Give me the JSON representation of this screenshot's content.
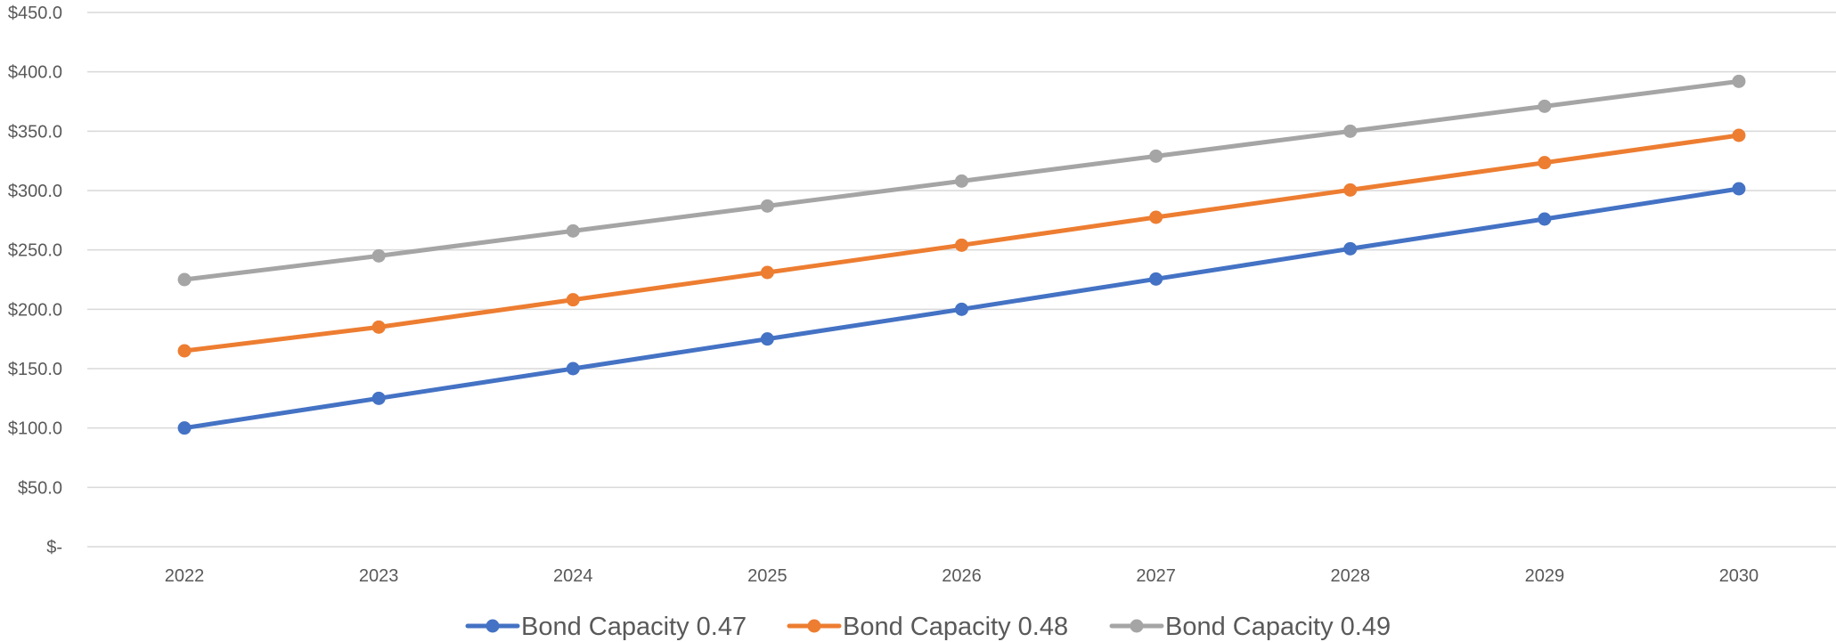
{
  "chart_data": {
    "type": "line",
    "x": [
      "2022",
      "2023",
      "2024",
      "2025",
      "2026",
      "2027",
      "2028",
      "2029",
      "2030"
    ],
    "series": [
      {
        "name": "Bond Capacity 0.47",
        "color": "#4472C4",
        "values": [
          100.0,
          125.0,
          150.0,
          175.0,
          200.0,
          225.5,
          251.0,
          276.0,
          301.5
        ]
      },
      {
        "name": "Bond Capacity 0.48",
        "color": "#ED7D31",
        "values": [
          165.0,
          185.0,
          208.0,
          231.0,
          254.0,
          277.5,
          300.5,
          323.5,
          346.5
        ]
      },
      {
        "name": "Bond Capacity 0.49",
        "color": "#A5A5A5",
        "values": [
          225.0,
          245.0,
          266.0,
          287.0,
          308.0,
          329.0,
          350.0,
          371.0,
          392.0
        ]
      }
    ],
    "yticks": [
      {
        "value": 0,
        "label": "$-"
      },
      {
        "value": 50,
        "label": "$50.0"
      },
      {
        "value": 100,
        "label": "$100.0"
      },
      {
        "value": 150,
        "label": "$150.0"
      },
      {
        "value": 200,
        "label": "$200.0"
      },
      {
        "value": 250,
        "label": "$250.0"
      },
      {
        "value": 300,
        "label": "$300.0"
      },
      {
        "value": 350,
        "label": "$350.0"
      },
      {
        "value": 400,
        "label": "$400.0"
      },
      {
        "value": 450,
        "label": "$450.0"
      }
    ],
    "ylim": [
      0,
      450
    ],
    "title": "",
    "xlabel": "",
    "ylabel": "",
    "grid": true,
    "markers": true,
    "legend": "bottom"
  }
}
